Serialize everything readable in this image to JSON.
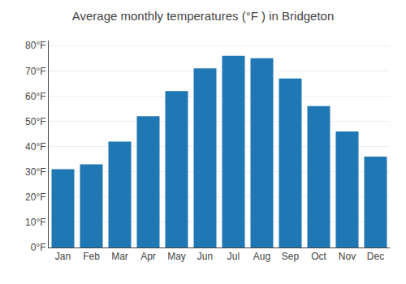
{
  "chart_data": {
    "type": "bar",
    "title": "Average monthly temperatures (°F ) in Bridgeton",
    "categories": [
      "Jan",
      "Feb",
      "Mar",
      "Apr",
      "May",
      "Jun",
      "Jul",
      "Aug",
      "Sep",
      "Oct",
      "Nov",
      "Dec"
    ],
    "values": [
      31,
      33,
      42,
      52,
      62,
      71,
      76,
      75,
      67,
      56,
      46,
      36
    ],
    "ylim": [
      0,
      82
    ],
    "yticks": [
      {
        "value": 0,
        "label": "0°F"
      },
      {
        "value": 10,
        "label": "10°F"
      },
      {
        "value": 20,
        "label": "20°F"
      },
      {
        "value": 30,
        "label": "30°F"
      },
      {
        "value": 40,
        "label": "40°F"
      },
      {
        "value": 50,
        "label": "50°F"
      },
      {
        "value": 60,
        "label": "60°F"
      },
      {
        "value": 70,
        "label": "70°F"
      },
      {
        "value": 80,
        "label": "80°F"
      }
    ],
    "grid": true
  }
}
